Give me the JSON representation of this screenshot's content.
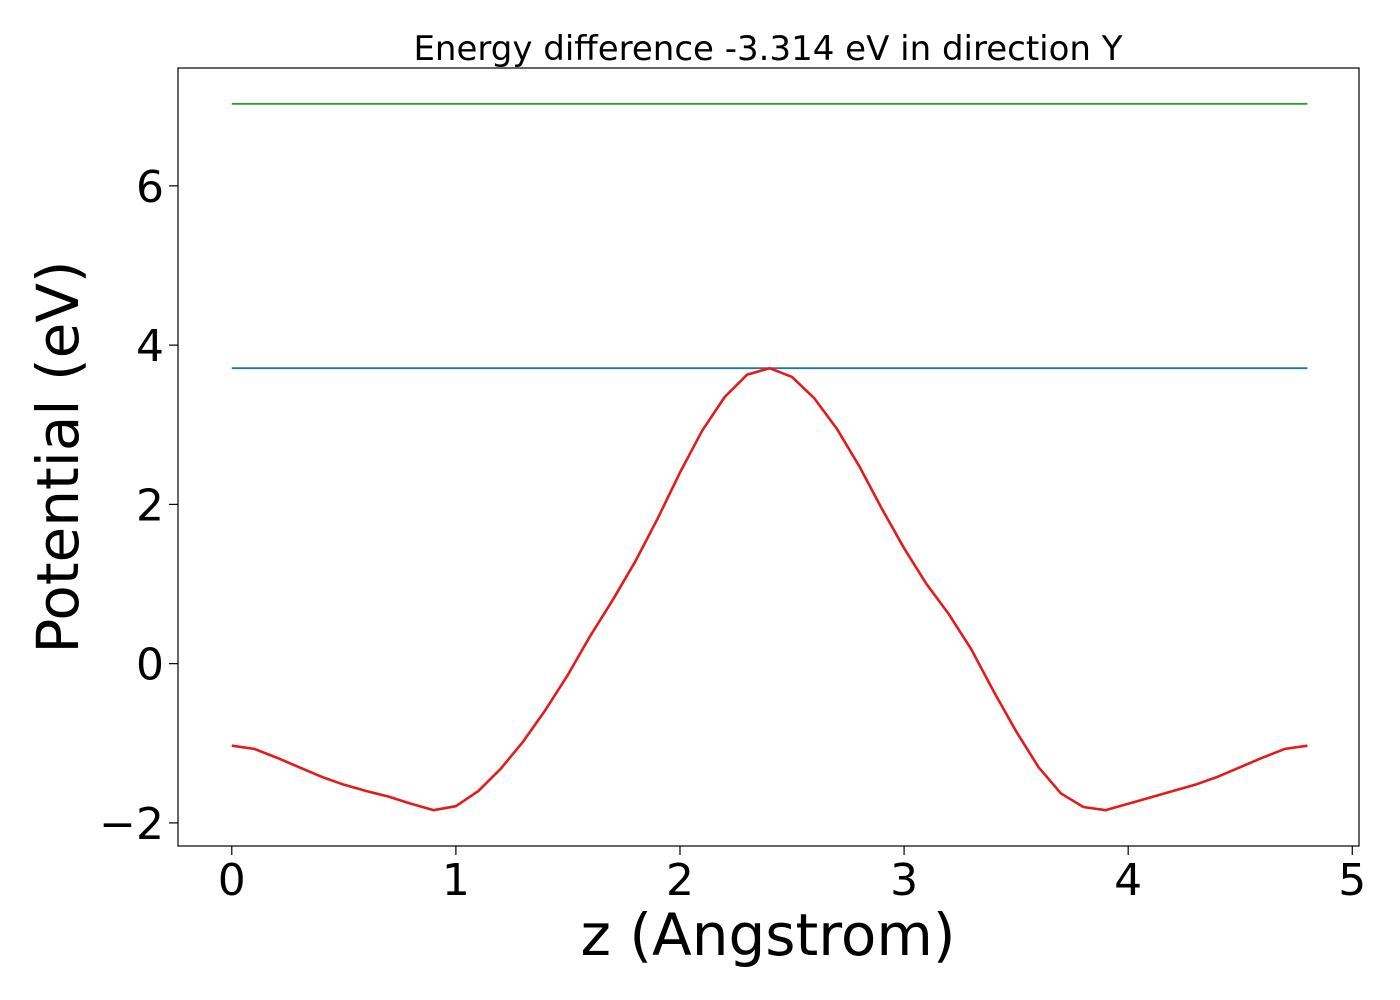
{
  "chart_data": {
    "type": "line",
    "title": "Energy difference -3.314 eV in direction Y",
    "xlabel": "z (Angstrom)",
    "ylabel": "Potential (eV)",
    "xlim": [
      -0.24,
      5.03
    ],
    "ylim": [
      -2.29,
      7.48
    ],
    "xticks": [
      0,
      1,
      2,
      3,
      4,
      5
    ],
    "xtick_labels": [
      "0",
      "1",
      "2",
      "3",
      "4",
      "5"
    ],
    "yticks": [
      -2,
      0,
      2,
      4,
      6
    ],
    "ytick_labels": [
      "−2",
      "0",
      "2",
      "4",
      "6"
    ],
    "grid": false,
    "legend": "none",
    "series": [
      {
        "color": "#2ca02c",
        "x": [
          0,
          4.8
        ],
        "y": [
          7.03,
          7.03
        ]
      },
      {
        "color": "#1f77b4",
        "x": [
          0,
          4.8
        ],
        "y": [
          3.71,
          3.71
        ]
      },
      {
        "color": "#e41a1c",
        "x": [
          0,
          0.1,
          0.2,
          0.3,
          0.4,
          0.5,
          0.6,
          0.7,
          0.8,
          0.9,
          1.0,
          1.1,
          1.2,
          1.3,
          1.4,
          1.5,
          1.6,
          1.7,
          1.8,
          1.9,
          2.0,
          2.1,
          2.2,
          2.3,
          2.4,
          2.5,
          2.6,
          2.7,
          2.8,
          2.9,
          3.0,
          3.1,
          3.2,
          3.3,
          3.4,
          3.5,
          3.6,
          3.7,
          3.8,
          3.9,
          4.0,
          4.1,
          4.2,
          4.3,
          4.4,
          4.5,
          4.6,
          4.7,
          4.8
        ],
        "y": [
          -1.03,
          -1.07,
          -1.18,
          -1.3,
          -1.42,
          -1.52,
          -1.6,
          -1.67,
          -1.76,
          -1.84,
          -1.79,
          -1.6,
          -1.32,
          -0.98,
          -0.58,
          -0.14,
          0.35,
          0.8,
          1.28,
          1.82,
          2.4,
          2.93,
          3.35,
          3.63,
          3.71,
          3.6,
          3.33,
          2.95,
          2.48,
          1.95,
          1.45,
          1.0,
          0.62,
          0.18,
          -0.35,
          -0.85,
          -1.3,
          -1.63,
          -1.8,
          -1.84,
          -1.76,
          -1.68,
          -1.6,
          -1.52,
          -1.42,
          -1.3,
          -1.18,
          -1.07,
          -1.03
        ]
      }
    ]
  }
}
